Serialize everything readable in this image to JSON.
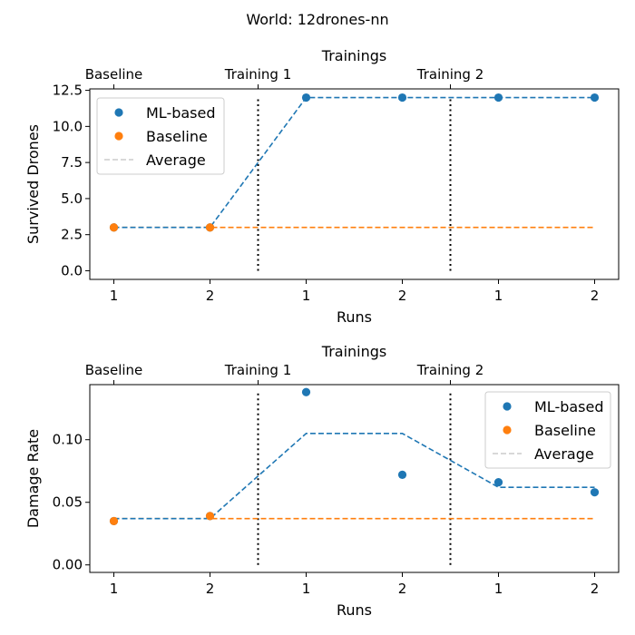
{
  "figure": {
    "suptitle": "World: 12drones-nn"
  },
  "colors": {
    "ml": "#1f77b4",
    "baseline": "#ff7f0e",
    "average": "#cccccc",
    "divider": "#000000"
  },
  "chart_data": [
    {
      "type": "scatter",
      "x_tick_labels": [
        "1",
        "2",
        "1",
        "2",
        "1",
        "2"
      ],
      "xlabel": "Runs",
      "ylabel": "Survived Drones",
      "top_xlabel": "Trainings",
      "top_tick_labels": [
        "Baseline",
        "Training 1",
        "Training 2"
      ],
      "ylim": [
        -0.6,
        12.6
      ],
      "yticks": [
        0.0,
        2.5,
        5.0,
        7.5,
        10.0,
        12.5
      ],
      "ytick_labels": [
        "0.0",
        "2.5",
        "5.0",
        "7.5",
        "10.0",
        "12.5"
      ],
      "series": [
        {
          "name": "ML-based",
          "x": [
            0,
            1,
            2,
            3,
            4,
            5
          ],
          "y": [
            3,
            3,
            12,
            12,
            12,
            12
          ]
        },
        {
          "name": "Baseline",
          "x": [
            0,
            1
          ],
          "y": [
            3,
            3
          ]
        }
      ],
      "averages": {
        "ml": [
          3,
          3,
          12,
          12,
          12,
          12
        ],
        "baseline": [
          3,
          3,
          3,
          3,
          3,
          3
        ]
      },
      "average_label": "Average",
      "dividers": [
        1.5,
        3.5
      ],
      "divider_range": [
        0,
        12
      ],
      "legend_position": "upper-left"
    },
    {
      "type": "scatter",
      "x_tick_labels": [
        "1",
        "2",
        "1",
        "2",
        "1",
        "2"
      ],
      "xlabel": "Runs",
      "ylabel": "Damage Rate",
      "top_xlabel": "Trainings",
      "top_tick_labels": [
        "Baseline",
        "Training 1",
        "Training 2"
      ],
      "ylim": [
        -0.006,
        0.144
      ],
      "yticks": [
        0.0,
        0.05,
        0.1
      ],
      "ytick_labels": [
        "0.00",
        "0.05",
        "0.10"
      ],
      "series": [
        {
          "name": "ML-based",
          "x": [
            0,
            1,
            2,
            3,
            4,
            5
          ],
          "y": [
            0.035,
            0.039,
            0.138,
            0.072,
            0.066,
            0.058
          ]
        },
        {
          "name": "Baseline",
          "x": [
            0,
            1
          ],
          "y": [
            0.035,
            0.039
          ]
        }
      ],
      "averages": {
        "ml": [
          0.037,
          0.037,
          0.105,
          0.105,
          0.062,
          0.062
        ],
        "baseline": [
          0.037,
          0.037,
          0.037,
          0.037,
          0.037,
          0.037
        ]
      },
      "average_label": "Average",
      "dividers": [
        1.5,
        3.5
      ],
      "divider_range": [
        0,
        0.138
      ],
      "legend_position": "upper-right"
    }
  ]
}
